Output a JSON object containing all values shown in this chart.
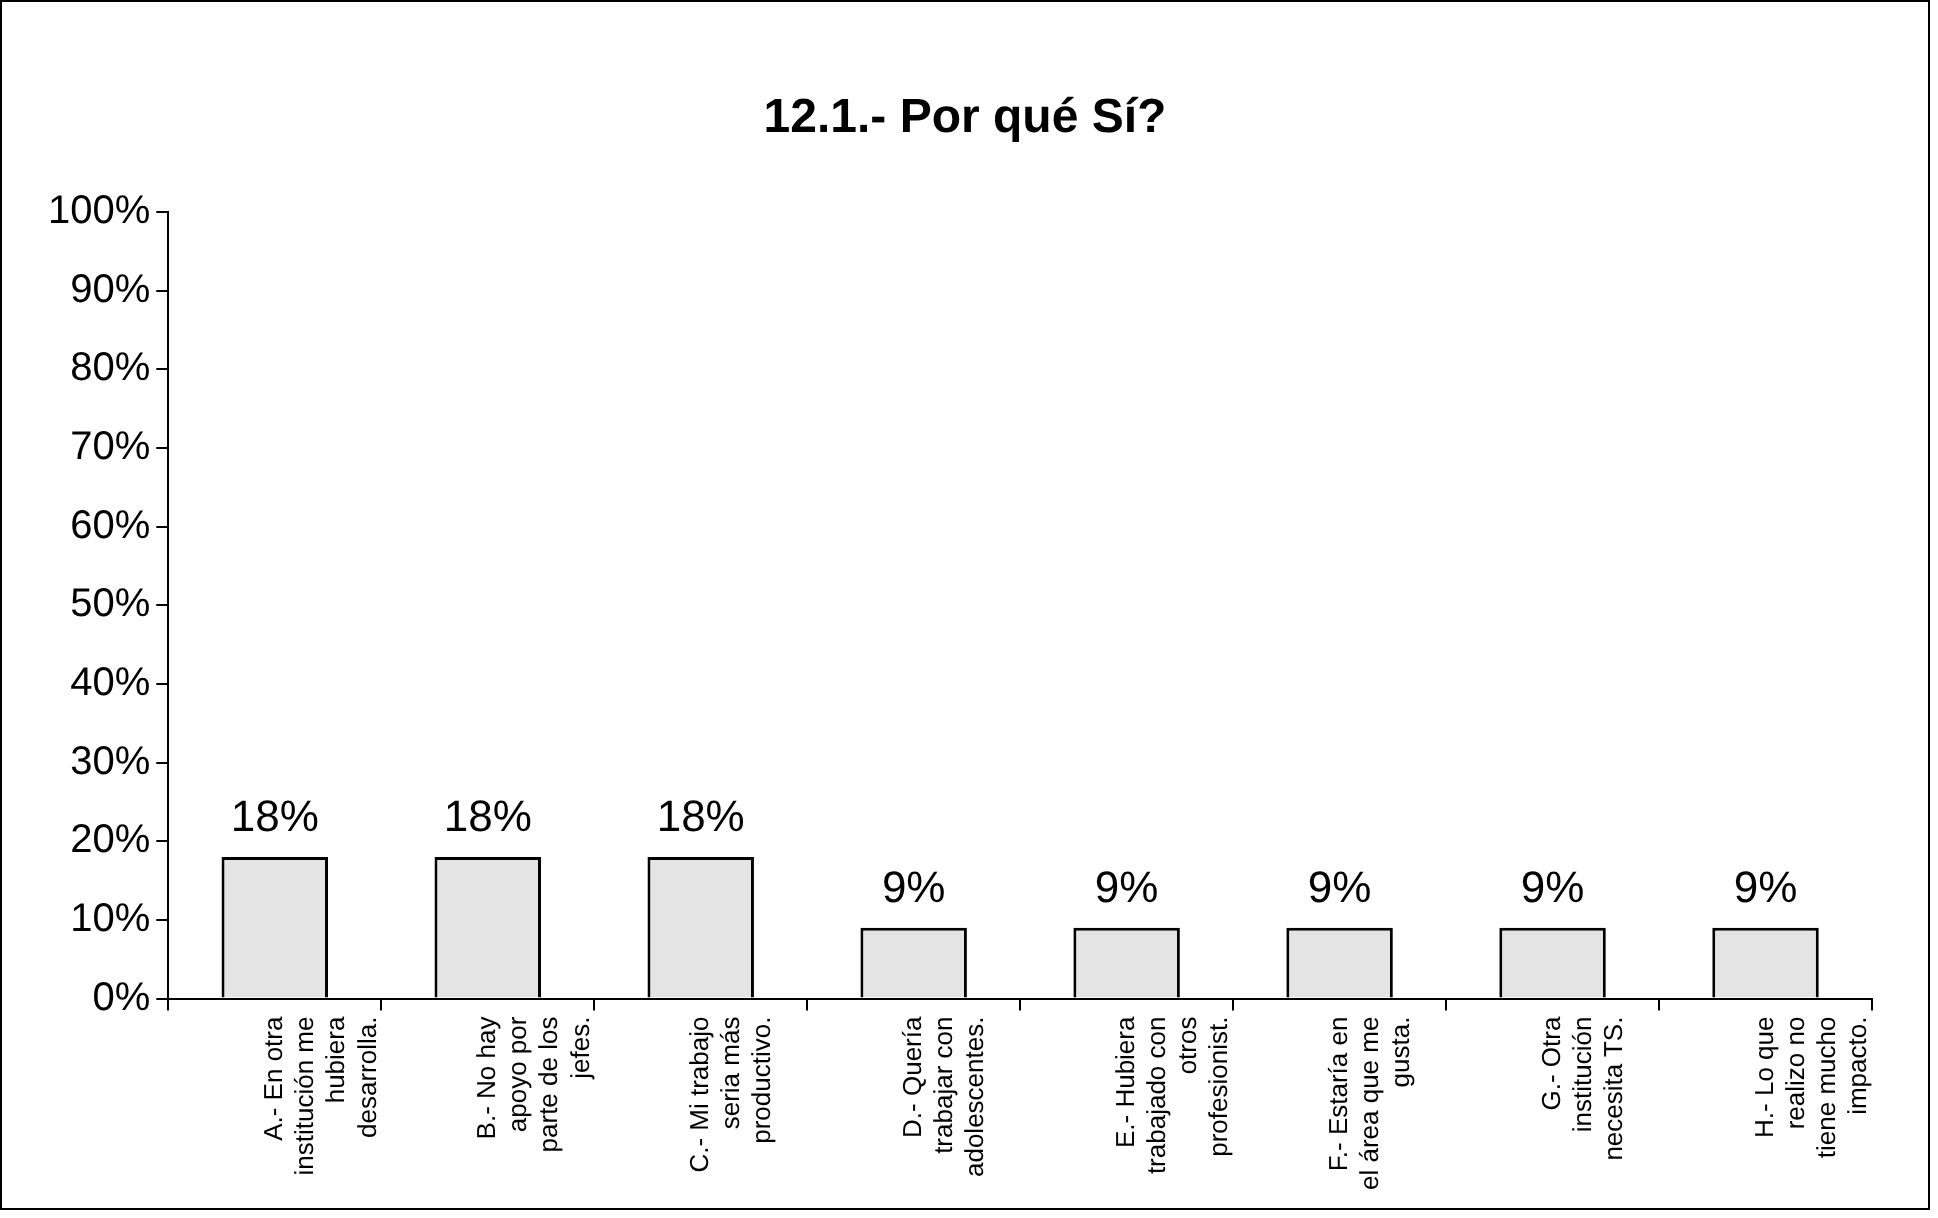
{
  "chart_data": {
    "type": "bar",
    "title": "12.1.- Por qué Sí?",
    "categories": [
      "A.- En otra institución me hubiera desarrolla.",
      "B.- No hay apoyo por parte de los jefes.",
      "C.- Mi trabajo seria más productivo.",
      "D.- Quería trabajar con adolescentes.",
      "E.- Hubiera trabajado con otros profesionist.",
      "F.- Estaría en el área que me gusta.",
      "G.- Otra institución necesita TS.",
      "H.- Lo que realizo no tiene mucho impacto."
    ],
    "values": [
      18,
      18,
      18,
      9,
      9,
      9,
      9,
      9
    ],
    "value_labels": [
      "18%",
      "18%",
      "18%",
      "9%",
      "9%",
      "9%",
      "9%",
      "9%"
    ],
    "color": "#e4e4e4",
    "ylim": [
      0,
      100
    ],
    "yticks": [
      {
        "value": 0,
        "label": "0%"
      },
      {
        "value": 10,
        "label": "10%"
      },
      {
        "value": 20,
        "label": "20%"
      },
      {
        "value": 30,
        "label": "30%"
      },
      {
        "value": 40,
        "label": "40%"
      },
      {
        "value": 50,
        "label": "50%"
      },
      {
        "value": 60,
        "label": "60%"
      },
      {
        "value": 70,
        "label": "70%"
      },
      {
        "value": 80,
        "label": "80%"
      },
      {
        "value": 90,
        "label": "90%"
      },
      {
        "value": 100,
        "label": "100%"
      }
    ],
    "grid": false,
    "legend": false
  }
}
